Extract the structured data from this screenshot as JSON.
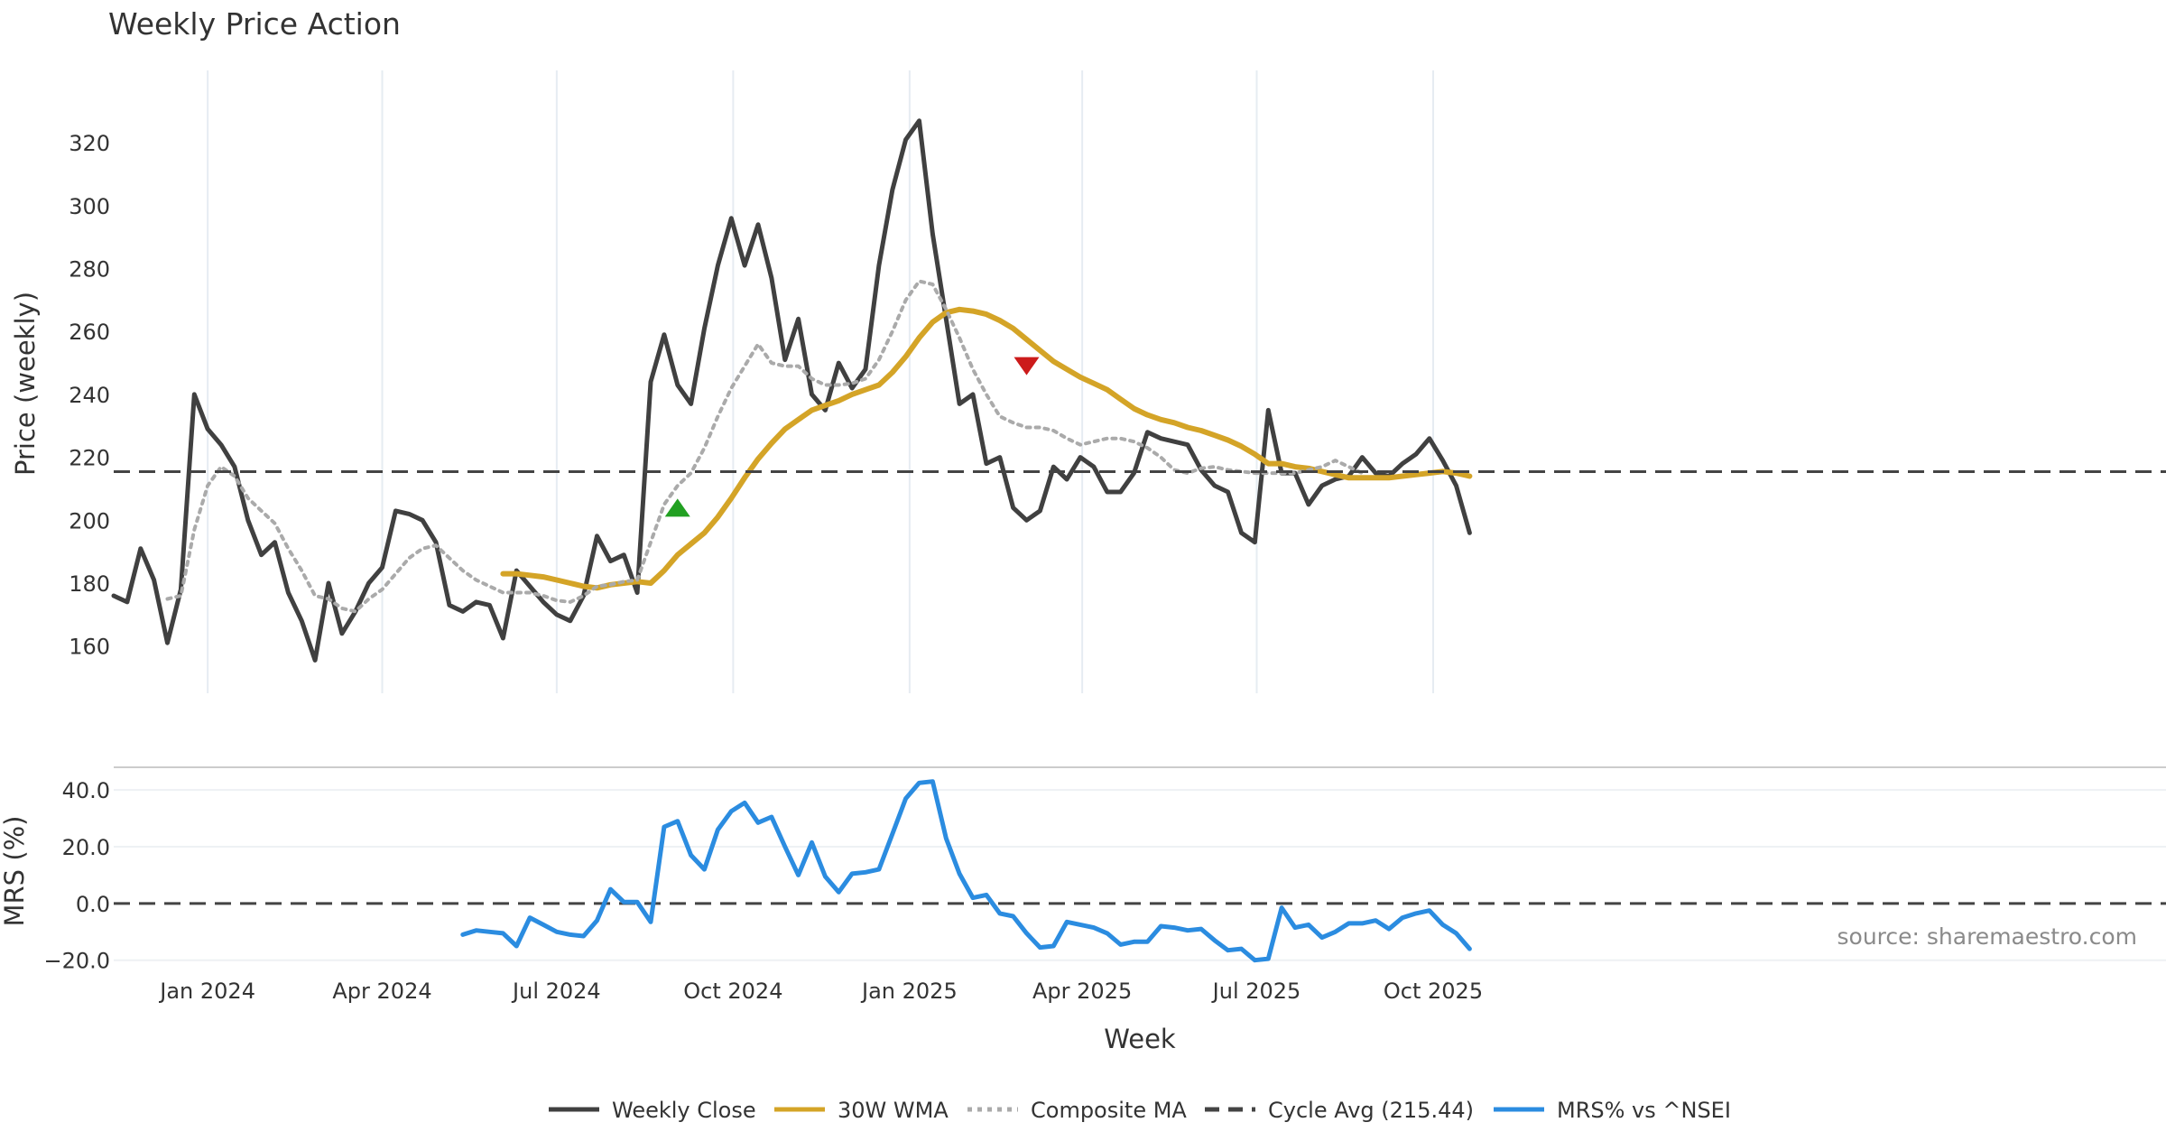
{
  "chart_data": [
    {
      "type": "line",
      "panel": "price",
      "title": "Weekly Price Action",
      "ylabel": "Price (weekly)",
      "xlabel": "",
      "ylim": [
        145,
        343
      ],
      "yticks": [
        160,
        180,
        200,
        220,
        240,
        260,
        280,
        300,
        320
      ],
      "x_start": "2023-11-13",
      "x_step_days": 7,
      "grid": true,
      "series": [
        {
          "name": "Weekly Close",
          "color": "#404040",
          "style": "solid",
          "values": [
            176,
            174,
            191,
            181,
            161,
            178,
            240,
            229,
            224,
            217,
            200,
            189,
            193,
            177,
            168,
            155.5,
            180,
            164,
            171,
            180,
            185,
            203,
            202,
            200,
            193,
            173,
            171,
            174,
            173,
            162.5,
            184,
            179,
            174,
            170,
            168,
            176,
            195,
            187,
            189,
            177,
            244,
            259,
            243,
            237,
            261,
            281,
            296,
            281,
            294,
            277,
            251,
            264,
            240,
            235,
            250,
            242,
            248,
            281,
            305,
            321,
            327,
            291,
            264,
            237,
            240,
            218,
            220,
            204,
            200,
            203,
            217,
            213,
            220,
            217,
            209,
            209,
            215,
            228,
            226,
            225,
            224,
            216,
            211,
            209,
            196,
            193,
            235,
            215,
            215,
            205,
            211,
            213,
            214,
            220,
            215,
            214,
            218,
            221,
            226,
            219,
            211,
            196
          ]
        },
        {
          "name": "30W WMA",
          "color": "#d4a427",
          "style": "solid",
          "start_index": 29,
          "values": [
            183,
            183,
            182.5,
            182,
            181,
            180,
            179,
            178.5,
            179.5,
            180,
            180.5,
            180,
            184,
            189,
            192.5,
            196,
            201,
            207,
            213.5,
            219.5,
            224.5,
            229,
            232,
            235,
            236.5,
            238,
            240,
            241.5,
            243,
            247,
            252,
            258,
            263,
            266,
            267,
            266.5,
            265.5,
            263.5,
            261,
            257.5,
            254,
            250.5,
            248,
            245.5,
            243.5,
            241.5,
            238.5,
            235.5,
            233.5,
            232,
            231,
            229.5,
            228.5,
            227,
            225.5,
            223.5,
            221,
            218,
            218,
            217,
            216.5,
            215.5,
            214.5,
            213.5,
            213.5,
            213.5,
            213.5,
            214,
            214.5,
            215,
            215.5,
            215,
            214
          ]
        },
        {
          "name": "Composite MA",
          "color": "#aaaaaa",
          "style": "dotted",
          "start_index": 4,
          "values": [
            175,
            176,
            197,
            211,
            217,
            214,
            207,
            203,
            199,
            191,
            184,
            176,
            175,
            172,
            171,
            175,
            178,
            183,
            188,
            191,
            192,
            188,
            184,
            181,
            179,
            177,
            177,
            177,
            176,
            174.5,
            174,
            176,
            179,
            179.5,
            180.5,
            181,
            193,
            205,
            211,
            215,
            223,
            233,
            242,
            249,
            256,
            250,
            249,
            249,
            245,
            243,
            243,
            243.5,
            245,
            251,
            260,
            270,
            276,
            275,
            267,
            258,
            248,
            240,
            233,
            231,
            229.5,
            229.5,
            228.5,
            226,
            224,
            225,
            226,
            226,
            225,
            223,
            220,
            216,
            215,
            216.5,
            217,
            216,
            215.5,
            215,
            215,
            215,
            215,
            216,
            217,
            219,
            217,
            215
          ]
        },
        {
          "name": "Cycle Avg (215.44)",
          "color": "#444444",
          "style": "dashed",
          "constant": 215.44
        }
      ],
      "annotations": [
        {
          "type": "buy-marker",
          "index": 42,
          "value": 204,
          "color": "#22a022"
        },
        {
          "type": "sell-marker",
          "index": 68,
          "value": 249,
          "color": "#cc1b1b"
        }
      ]
    },
    {
      "type": "line",
      "panel": "mrs",
      "title": "",
      "ylabel": "MRS (%)",
      "xlabel": "Week",
      "ylim": [
        -22,
        48
      ],
      "yticks": [
        -20,
        0,
        20,
        40
      ],
      "ytick_labels": [
        "−20.0",
        "0.0",
        "20.0",
        "40.0"
      ],
      "zero_line": 0,
      "grid": true,
      "series": [
        {
          "name": "MRS% vs ^NSEI",
          "color": "#2b8ce0",
          "style": "solid",
          "start_index": 26,
          "values": [
            -11,
            -9.5,
            -10,
            -10.5,
            -15,
            -5,
            -7.5,
            -10,
            -11,
            -11.5,
            -6,
            5,
            0.5,
            0.5,
            -6.5,
            27,
            29,
            17,
            12,
            26,
            32.5,
            35.5,
            28.5,
            30.5,
            20,
            10,
            21.5,
            9.5,
            4,
            10.5,
            11,
            12,
            24.5,
            37,
            42.5,
            43,
            23,
            10.5,
            2,
            3,
            -3.5,
            -4.5,
            -10.5,
            -15.5,
            -15,
            -6.5,
            -7.5,
            -8.5,
            -10.5,
            -14.5,
            -13.5,
            -13.5,
            -8,
            -8.5,
            -9.5,
            -9,
            -13,
            -16.5,
            -16,
            -20,
            -19.5,
            -1.5,
            -8.5,
            -7.5,
            -12,
            -10,
            -7,
            -7,
            -6,
            -9,
            -5,
            -3.5,
            -2.5,
            -7.5,
            -10.5,
            -16
          ]
        }
      ]
    }
  ],
  "x_axis": {
    "label": "Week",
    "ticks": [
      {
        "label": "Jan 2024",
        "date": "2024-01-01"
      },
      {
        "label": "Apr 2024",
        "date": "2024-04-01"
      },
      {
        "label": "Jul 2024",
        "date": "2024-07-01"
      },
      {
        "label": "Oct 2024",
        "date": "2024-10-01"
      },
      {
        "label": "Jan 2025",
        "date": "2025-01-01"
      },
      {
        "label": "Apr 2025",
        "date": "2025-04-01"
      },
      {
        "label": "Jul 2025",
        "date": "2025-07-01"
      },
      {
        "label": "Oct 2025",
        "date": "2025-10-01"
      }
    ]
  },
  "source_text": "source: sharemaestro.com",
  "legend": [
    {
      "label": "Weekly Close",
      "color": "#404040",
      "style": "solid"
    },
    {
      "label": "30W WMA",
      "color": "#d4a427",
      "style": "solid"
    },
    {
      "label": "Composite MA",
      "color": "#aaaaaa",
      "style": "dotted"
    },
    {
      "label": "Cycle Avg (215.44)",
      "color": "#444444",
      "style": "dashed"
    },
    {
      "label": "MRS% vs ^NSEI",
      "color": "#2b8ce0",
      "style": "solid"
    }
  ]
}
